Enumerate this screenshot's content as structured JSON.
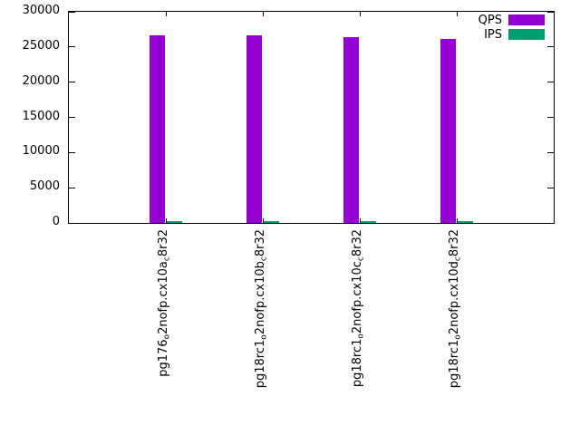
{
  "chart_data": {
    "type": "bar",
    "title": "",
    "xlabel": "",
    "ylabel": "",
    "grid": false,
    "legend_position": "top-right",
    "background": "#ffffff",
    "axis_color": "#000000",
    "ylim": [
      0,
      30000
    ],
    "yticks": [
      0,
      5000,
      10000,
      15000,
      20000,
      25000,
      30000
    ],
    "categories": [
      "pg176_o2nofp.cx10a_c8r32",
      "pg18rc1_o2nofp.cx10b_c8r32",
      "pg18rc1_o2nofp.cx10c_c8r32",
      "pg18rc1_o2nofp.cx10d_c8r32"
    ],
    "category_display": [
      {
        "segments": [
          {
            "text": "pg176"
          },
          {
            "text": "o",
            "sub": true
          },
          {
            "text": "2nofp.cx10a"
          },
          {
            "text": "c",
            "sub": true
          },
          {
            "text": "8r32"
          }
        ]
      },
      {
        "segments": [
          {
            "text": "pg18rc1"
          },
          {
            "text": "o",
            "sub": true
          },
          {
            "text": "2nofp.cx10b"
          },
          {
            "text": "c",
            "sub": true
          },
          {
            "text": "8r32"
          }
        ]
      },
      {
        "segments": [
          {
            "text": "pg18rc1"
          },
          {
            "text": "o",
            "sub": true
          },
          {
            "text": "2nofp.cx10c"
          },
          {
            "text": "c",
            "sub": true
          },
          {
            "text": "8r32"
          }
        ]
      },
      {
        "segments": [
          {
            "text": "pg18rc1"
          },
          {
            "text": "o",
            "sub": true
          },
          {
            "text": "2nofp.cx10d"
          },
          {
            "text": "c",
            "sub": true
          },
          {
            "text": "8r32"
          }
        ]
      }
    ],
    "series": [
      {
        "name": "QPS",
        "color": "#9400d3",
        "values": [
          26600,
          26600,
          26450,
          26200
        ]
      },
      {
        "name": "IPS",
        "color": "#009e73",
        "values": [
          200,
          200,
          200,
          200
        ]
      }
    ]
  }
}
